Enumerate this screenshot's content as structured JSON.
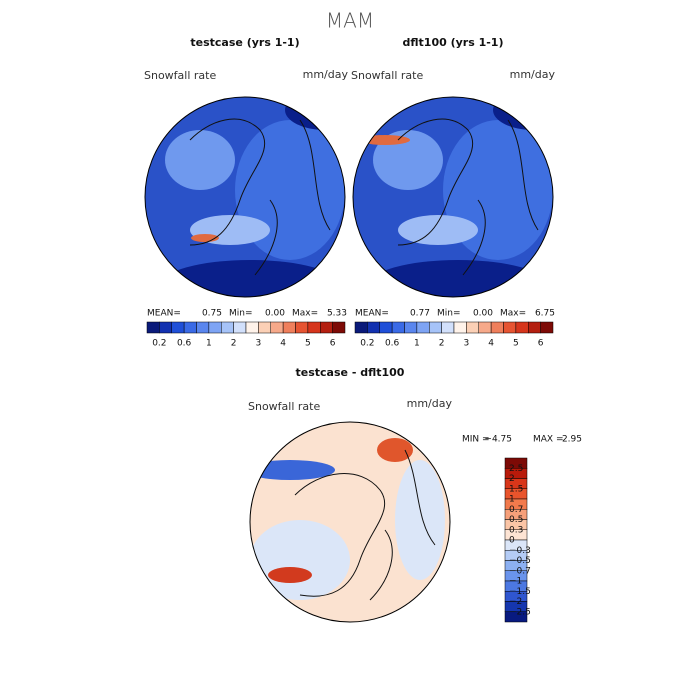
{
  "title": "MAM",
  "panels": [
    {
      "title": "testcase (yrs 1-1)",
      "left_label": "Snowfall rate",
      "right_label": "mm/day",
      "stats": [
        "MEAN=",
        "0.75",
        "Min=",
        "0.00",
        "Max=",
        "5.33"
      ]
    },
    {
      "title": "dflt100 (yrs 1-1)",
      "left_label": "Snowfall rate",
      "right_label": "mm/day",
      "stats": [
        "MEAN=",
        "0.77",
        "Min=",
        "0.00",
        "Max=",
        "6.75"
      ]
    },
    {
      "title": "testcase - dflt100",
      "left_label": "Snowfall rate",
      "right_label": "mm/day",
      "stats": [
        "MIN =",
        "−4.75",
        "MAX =",
        "2.95"
      ]
    }
  ],
  "colorbar_top": {
    "colors": [
      "#0a1a7a",
      "#1231b0",
      "#1f4fd8",
      "#3a6ae6",
      "#5a86ee",
      "#7ea4f4",
      "#a6c3f8",
      "#d2e0fb",
      "#fff3ea",
      "#fbd0b6",
      "#f6a98a",
      "#ef7f5c",
      "#e65432",
      "#d6351c",
      "#b41f10",
      "#7d0a06"
    ],
    "labels": [
      "0.2",
      "0.6",
      "1",
      "2",
      "3",
      "4",
      "5",
      "6"
    ]
  },
  "colorbar_diff": {
    "colors": [
      "#7d0a06",
      "#b81a0a",
      "#d8361a",
      "#e9542c",
      "#f27a4c",
      "#f7a07a",
      "#fbc5a6",
      "#fde4d4",
      "#dbe6f8",
      "#b4ccf6",
      "#8cb0f2",
      "#6a94ec",
      "#4c78e2",
      "#2f56d0",
      "#1536ae",
      "#081a80"
    ],
    "labels": [
      "2.5",
      "2",
      "1.5",
      "1",
      "0.7",
      "0.5",
      "0.3",
      "0",
      "−0.3",
      "−0.5",
      "−0.7",
      "−1",
      "−1.5",
      "−2",
      "−2.5"
    ]
  }
}
